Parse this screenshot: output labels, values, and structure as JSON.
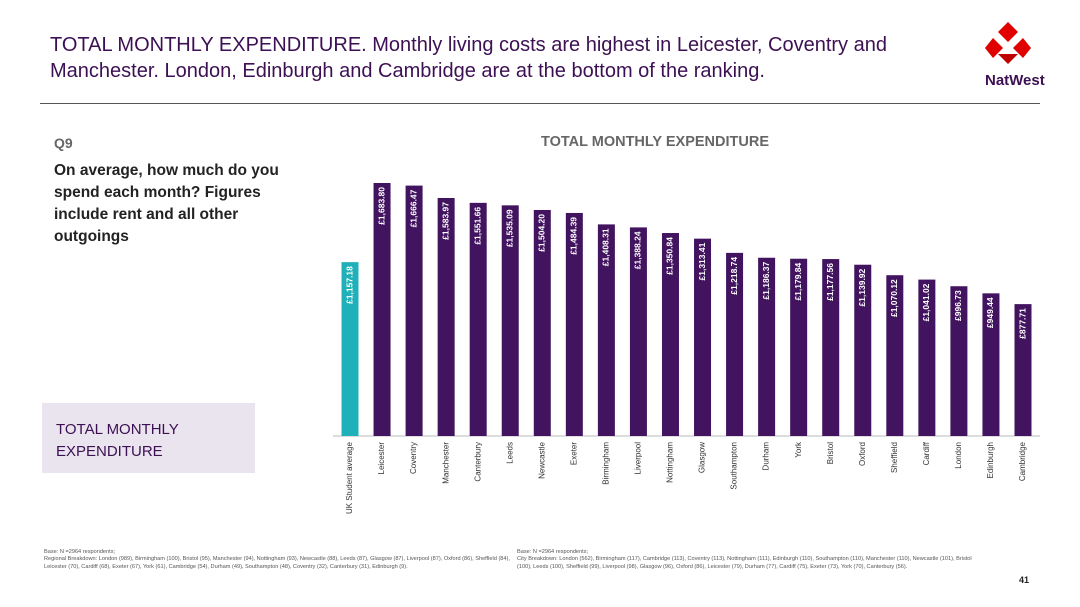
{
  "header": {
    "title": "TOTAL MONTHLY EXPENDITURE. Monthly living costs are highest in Leicester, Coventry and Manchester. London, Edinburgh and Cambridge are at the bottom of the ranking.",
    "logo": "NatWest"
  },
  "question": {
    "number": "Q9",
    "text": "On average, how much do you spend each month? Figures include rent and all other outgoings"
  },
  "section_label": "TOTAL MONTHLY EXPENDITURE",
  "footnotes": [
    {
      "base": "Base: N =2964 respondents;",
      "text": "Regional Breakdown: London (989), Birmingham (100), Bristol (95), Manchester (94), Nottingham (93), Newcastle (88), Leeds (87), Glasgow (87), Liverpool (87), Oxford (86), Sheffield (84), Leicester (70), Cardiff (68), Exeter (67), York (61), Cambridge (54), Durham (49), Southampton (48), Coventry (32), Canterbury (31), Edinburgh (9)."
    },
    {
      "base": "Base: N =2964 respondents;",
      "text": "City Breakdown: London (562), Birmingham (117), Cambridge (113), Coventry (113), Nottingham (111), Edinburgh (110), Southampton (110), Manchester (110), Newcastle (101), Bristol (100), Leeds (100), Sheffield (99), Liverpool (98), Glasgow (96), Oxford (86), Leicester (79), Durham (77), Cardiff (75), Exeter (73), York (70), Canterbury (56)."
    }
  ],
  "page_number": "41",
  "chart_data": {
    "type": "bar",
    "title": "TOTAL MONTHLY EXPENDITURE",
    "categories": [
      "UK Student average",
      "Leicester",
      "Coventry",
      "Manchester",
      "Canterbury",
      "Leeds",
      "Newcastle",
      "Exeter",
      "Birmingham",
      "Liverpool",
      "Nottingham",
      "Glasgow",
      "Southampton",
      "Durham",
      "York",
      "Bristol",
      "Oxford",
      "Sheffield",
      "Cardiff",
      "London",
      "Edinburgh",
      "Cambridge"
    ],
    "values": [
      1157.18,
      1683.8,
      1666.47,
      1583.97,
      1551.66,
      1535.09,
      1504.2,
      1484.39,
      1408.31,
      1388.24,
      1350.84,
      1313.41,
      1218.74,
      1186.37,
      1179.84,
      1177.56,
      1139.92,
      1070.12,
      1041.02,
      996.73,
      949.44,
      877.71
    ],
    "value_labels": [
      "£1,157.18",
      "£1,683.80",
      "£1,666.47",
      "£1,583.97",
      "£1,551.66",
      "£1,535.09",
      "£1,504.20",
      "£1,484.39",
      "£1,408.31",
      "£1,388.24",
      "£1,350.84",
      "£1,313.41",
      "£1,218.74",
      "£1,186.37",
      "£1,179.84",
      "£1,177.56",
      "£1,139.92",
      "£1,070.12",
      "£1,041.02",
      "£996.73",
      "£949.44",
      "£877.71"
    ],
    "colors": [
      "#1fb0b9",
      "#42145f",
      "#42145f",
      "#42145f",
      "#42145f",
      "#42145f",
      "#42145f",
      "#42145f",
      "#42145f",
      "#42145f",
      "#42145f",
      "#42145f",
      "#42145f",
      "#42145f",
      "#42145f",
      "#42145f",
      "#42145f",
      "#42145f",
      "#42145f",
      "#42145f",
      "#42145f",
      "#42145f"
    ]
  }
}
